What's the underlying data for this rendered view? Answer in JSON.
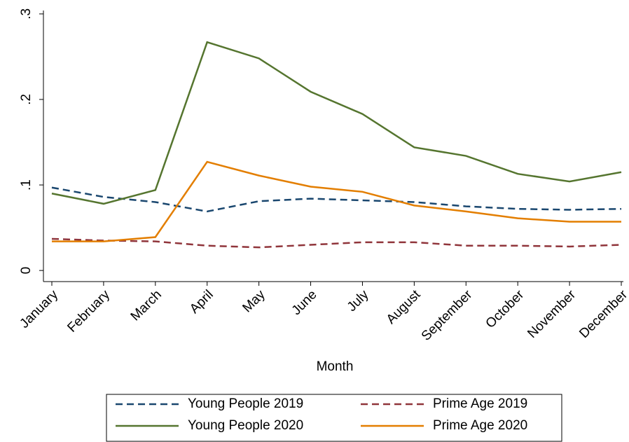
{
  "chart_data": {
    "type": "line",
    "x_label": "Month",
    "categories": [
      "January",
      "February",
      "March",
      "April",
      "May",
      "June",
      "July",
      "August",
      "September",
      "October",
      "November",
      "December"
    ],
    "series": [
      {
        "name": "Young People 2019",
        "color": "#1a476f",
        "style": "dashed",
        "values": [
          0.097,
          0.086,
          0.08,
          0.069,
          0.081,
          0.084,
          0.082,
          0.08,
          0.075,
          0.072,
          0.071,
          0.072
        ]
      },
      {
        "name": "Prime Age 2019",
        "color": "#90353b",
        "style": "dashed",
        "values": [
          0.037,
          0.035,
          0.034,
          0.029,
          0.027,
          0.03,
          0.033,
          0.033,
          0.029,
          0.029,
          0.028,
          0.03
        ]
      },
      {
        "name": "Young People 2020",
        "color": "#55752f",
        "style": "solid",
        "values": [
          0.09,
          0.078,
          0.094,
          0.267,
          0.248,
          0.209,
          0.183,
          0.144,
          0.134,
          0.113,
          0.104,
          0.115
        ]
      },
      {
        "name": "Prime Age 2020",
        "color": "#e37e00",
        "style": "solid",
        "values": [
          0.034,
          0.034,
          0.039,
          0.127,
          0.111,
          0.098,
          0.092,
          0.076,
          0.069,
          0.061,
          0.057,
          0.057
        ]
      }
    ],
    "ylim": [
      -0.013,
      0.304
    ],
    "yticks": [
      0,
      {
        "value": 0.1,
        "label": ".1"
      },
      {
        "value": 0.2,
        "label": ".2"
      },
      {
        "value": 0.3,
        "label": ".3"
      }
    ],
    "grid": false,
    "legend": "bottom"
  }
}
